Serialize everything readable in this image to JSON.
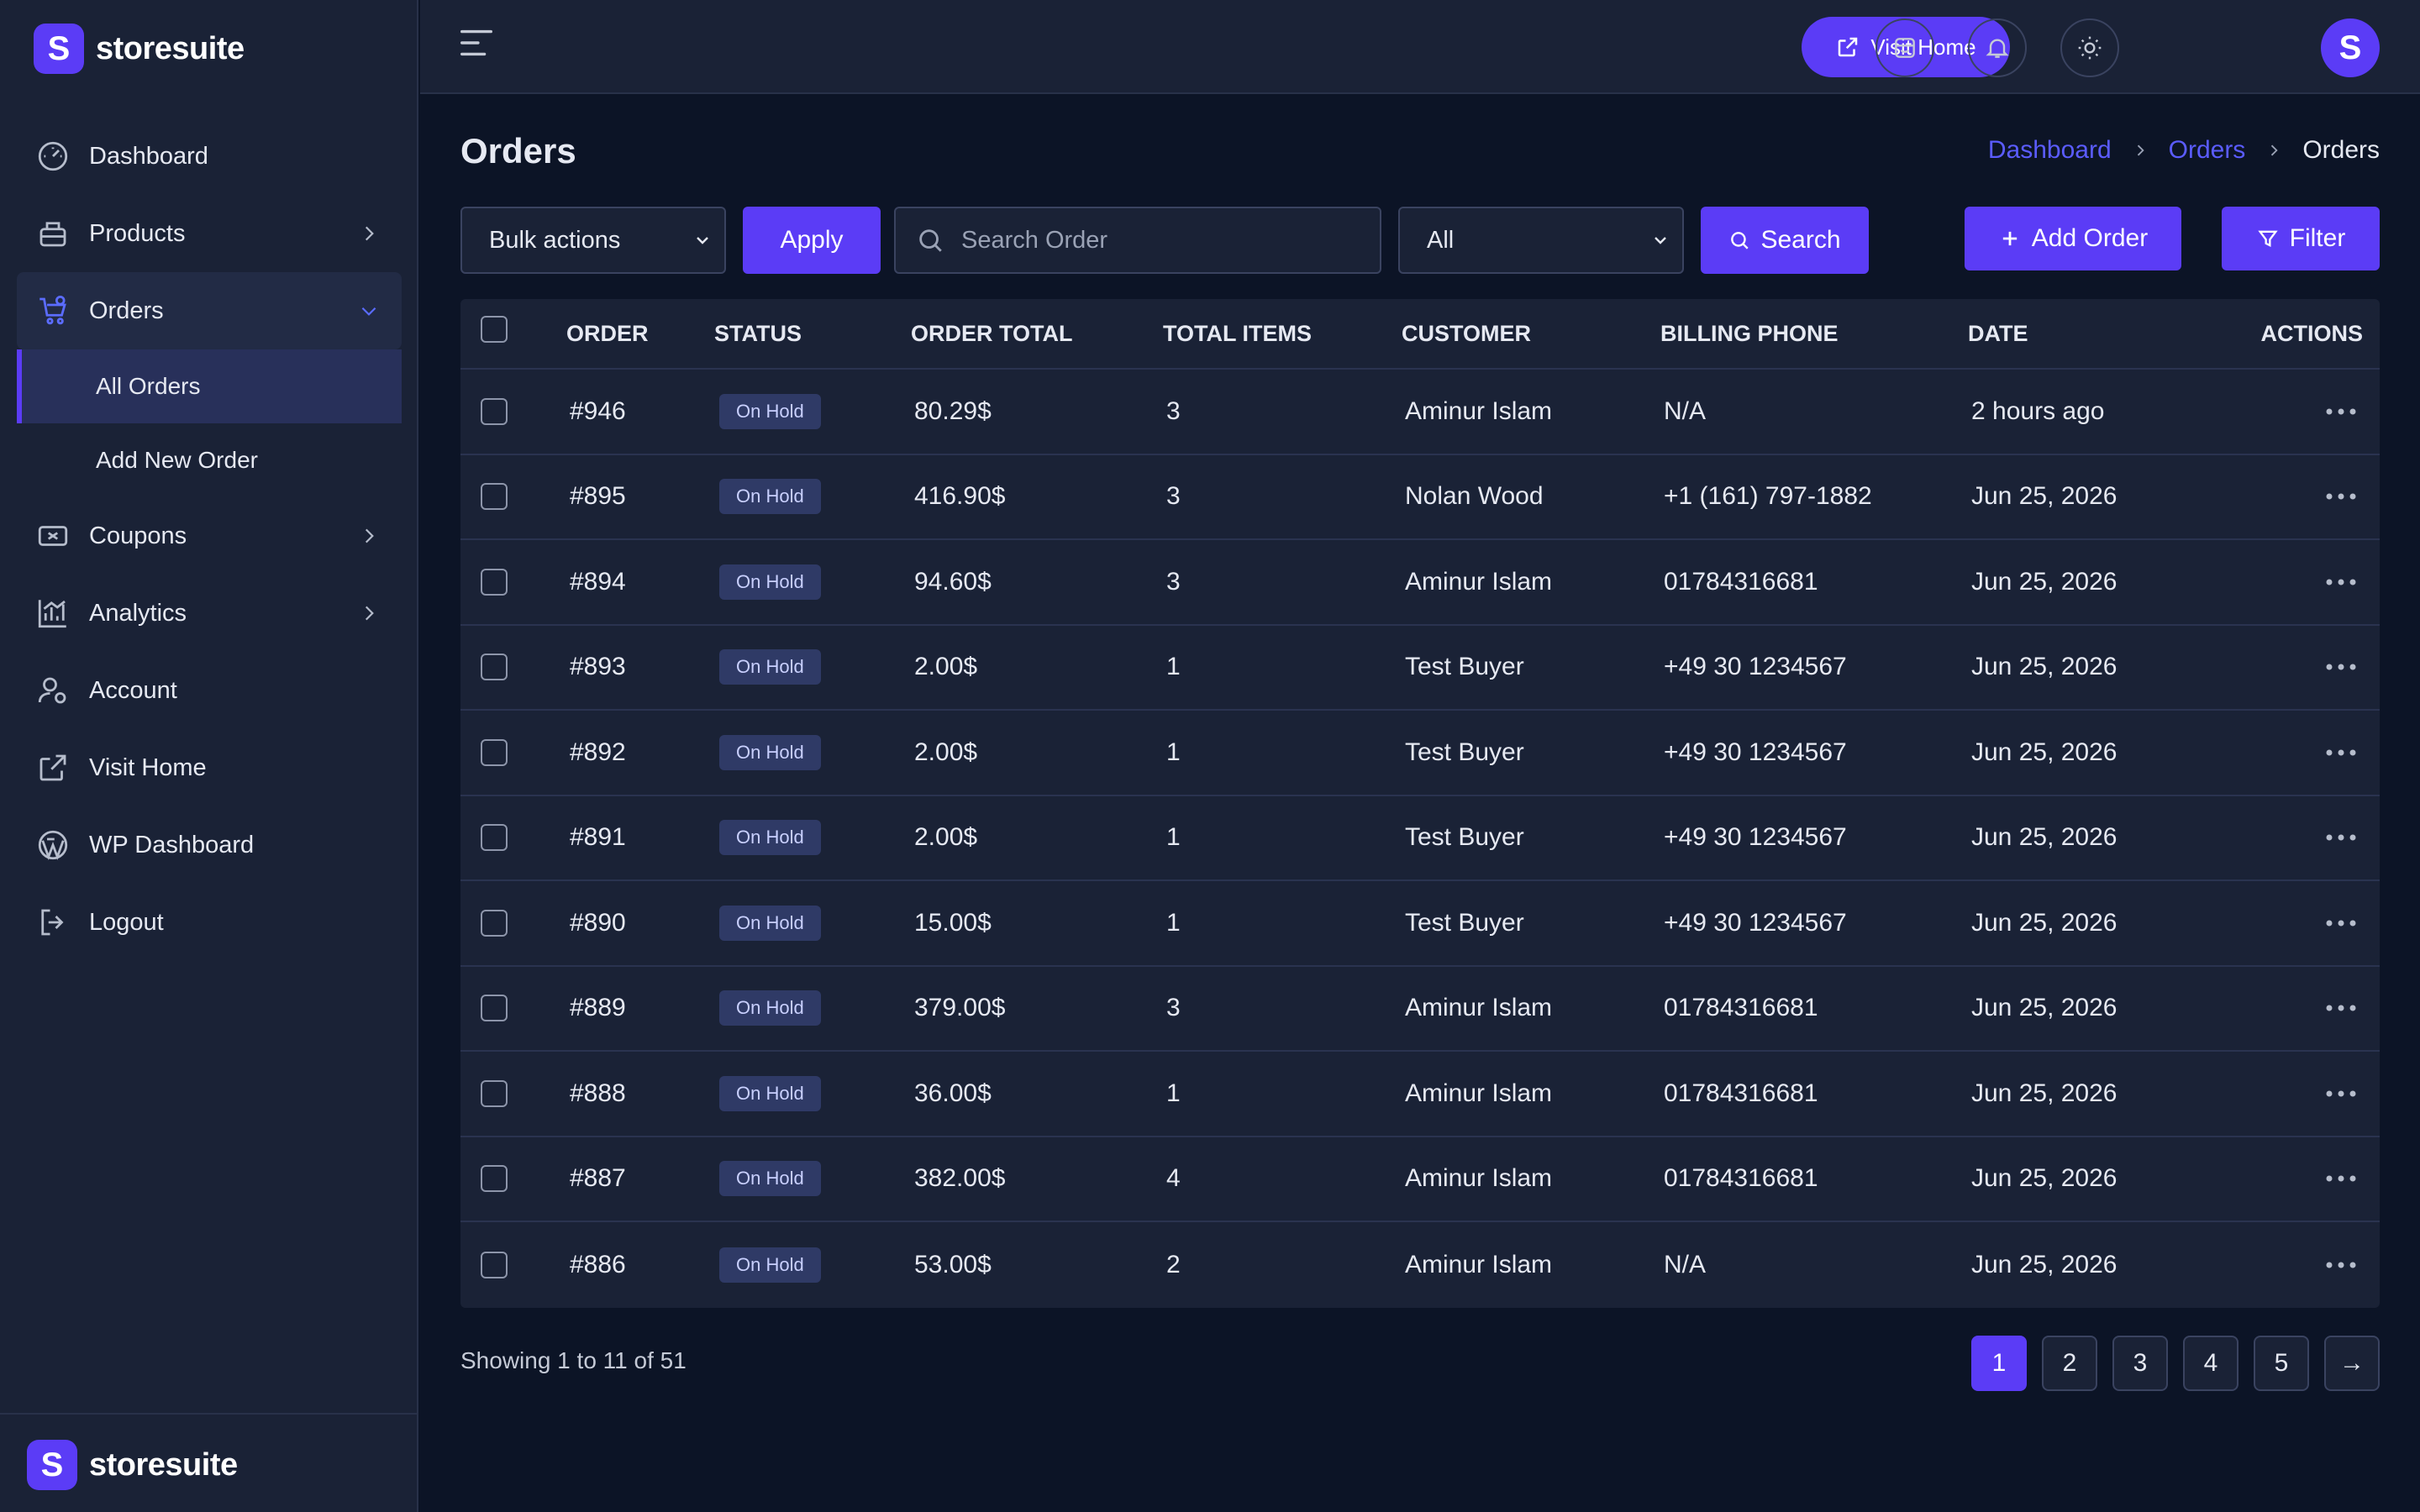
{
  "brand": {
    "logo_letter": "S",
    "name": "storesuite",
    "accent": "#5b3cf6"
  },
  "sidebar": {
    "items": [
      {
        "label": "Dashboard",
        "icon": "gauge-icon"
      },
      {
        "label": "Products",
        "icon": "box-icon"
      },
      {
        "label": "Orders",
        "icon": "cart-icon"
      },
      {
        "label": "Coupons",
        "icon": "coupon-icon"
      },
      {
        "label": "Analytics",
        "icon": "chart-icon"
      },
      {
        "label": "Account",
        "icon": "user-gear-icon"
      },
      {
        "label": "Visit Home",
        "icon": "external-link-icon"
      },
      {
        "label": "WP Dashboard",
        "icon": "wordpress-icon"
      },
      {
        "label": "Logout",
        "icon": "logout-icon"
      }
    ],
    "orders_sub": [
      {
        "label": "All Orders"
      },
      {
        "label": "Add New Order"
      }
    ]
  },
  "topbar": {
    "visit_home": "Visit Home",
    "avatar_letter": "S"
  },
  "page": {
    "title": "Orders",
    "breadcrumb": [
      "Dashboard",
      "Orders",
      "Orders"
    ]
  },
  "toolbar": {
    "bulk_actions": "Bulk actions",
    "apply": "Apply",
    "search_placeholder": "Search Order",
    "status_filter": "All",
    "search": "Search",
    "add_order": "Add Order",
    "filter": "Filter"
  },
  "table": {
    "headers": [
      "ORDER",
      "STATUS",
      "ORDER TOTAL",
      "TOTAL ITEMS",
      "CUSTOMER",
      "BILLING PHONE",
      "DATE",
      "ACTIONS"
    ],
    "rows": [
      {
        "order": "#946",
        "status": "On Hold",
        "total": "80.29$",
        "items": "3",
        "customer": "Aminur Islam",
        "phone": "N/A",
        "date": "2 hours ago"
      },
      {
        "order": "#895",
        "status": "On Hold",
        "total": "416.90$",
        "items": "3",
        "customer": "Nolan Wood",
        "phone": "+1 (161) 797-1882",
        "date": "Jun 25, 2026"
      },
      {
        "order": "#894",
        "status": "On Hold",
        "total": "94.60$",
        "items": "3",
        "customer": "Aminur Islam",
        "phone": "01784316681",
        "date": "Jun 25, 2026"
      },
      {
        "order": "#893",
        "status": "On Hold",
        "total": "2.00$",
        "items": "1",
        "customer": "Test Buyer",
        "phone": "+49 30 1234567",
        "date": "Jun 25, 2026"
      },
      {
        "order": "#892",
        "status": "On Hold",
        "total": "2.00$",
        "items": "1",
        "customer": "Test Buyer",
        "phone": "+49 30 1234567",
        "date": "Jun 25, 2026"
      },
      {
        "order": "#891",
        "status": "On Hold",
        "total": "2.00$",
        "items": "1",
        "customer": "Test Buyer",
        "phone": "+49 30 1234567",
        "date": "Jun 25, 2026"
      },
      {
        "order": "#890",
        "status": "On Hold",
        "total": "15.00$",
        "items": "1",
        "customer": "Test Buyer",
        "phone": "+49 30 1234567",
        "date": "Jun 25, 2026"
      },
      {
        "order": "#889",
        "status": "On Hold",
        "total": "379.00$",
        "items": "3",
        "customer": "Aminur Islam",
        "phone": "01784316681",
        "date": "Jun 25, 2026"
      },
      {
        "order": "#888",
        "status": "On Hold",
        "total": "36.00$",
        "items": "1",
        "customer": "Aminur Islam",
        "phone": "01784316681",
        "date": "Jun 25, 2026"
      },
      {
        "order": "#887",
        "status": "On Hold",
        "total": "382.00$",
        "items": "4",
        "customer": "Aminur Islam",
        "phone": "01784316681",
        "date": "Jun 25, 2026"
      },
      {
        "order": "#886",
        "status": "On Hold",
        "total": "53.00$",
        "items": "2",
        "customer": "Aminur Islam",
        "phone": "N/A",
        "date": "Jun 25, 2026"
      }
    ]
  },
  "pagination": {
    "showing": "Showing 1 to 11 of 51",
    "pages": [
      "1",
      "2",
      "3",
      "4",
      "5"
    ],
    "current": "1",
    "next": "→"
  }
}
